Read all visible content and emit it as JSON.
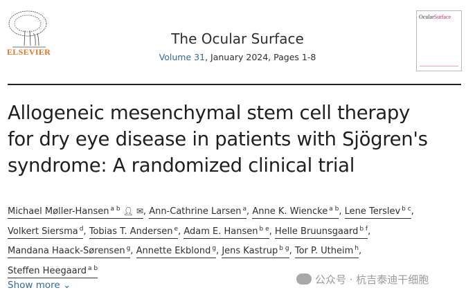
{
  "publisher": {
    "logo_text": "ELSEVIER"
  },
  "journal": {
    "title": "The Ocular Surface",
    "volume_link": "Volume 31",
    "issue_info": ", January 2024, Pages 1-8",
    "cover_title_a": "Ocular",
    "cover_title_b": "Surface"
  },
  "article": {
    "title_lines": [
      "Allogeneic mesenchymal stem cell therapy",
      "for dry eye disease in patients with Sjögren's",
      "syndrome: A randomized clinical trial"
    ]
  },
  "authors": [
    {
      "name": "Michael Møller-Hansen",
      "aff": "a b"
    },
    {
      "name": "Ann-Cathrine Larsen",
      "aff": "a"
    },
    {
      "name": "Anne K. Wiencke",
      "aff": "a b"
    },
    {
      "name": "Lene Terslev",
      "aff": "b c"
    },
    {
      "name": "Volkert Siersma",
      "aff": "d"
    },
    {
      "name": "Tobias T. Andersen",
      "aff": "e"
    },
    {
      "name": "Adam E. Hansen",
      "aff": "b e"
    },
    {
      "name": "Helle Bruunsgaard",
      "aff": "b f"
    },
    {
      "name": "Mandana Haack-Sørensen",
      "aff": "g"
    },
    {
      "name": "Annette Ekblond",
      "aff": "g"
    },
    {
      "name": "Jens Kastrup",
      "aff": "b g"
    },
    {
      "name": "Tor P. Utheim",
      "aff": "h"
    },
    {
      "name": "Steffen Heegaard",
      "aff": "a b"
    }
  ],
  "separator": ",",
  "show_more": "Show more",
  "watermark": "公众号 · 杭吉泰迪干细胞",
  "icons": {
    "corresponding": "person-icon",
    "email": "envelope-icon",
    "expand": "chevron-down-icon"
  },
  "colors": {
    "link": "#2e6a99",
    "elsevier_orange": "#e9711c",
    "cover_accent": "#c4245b"
  }
}
